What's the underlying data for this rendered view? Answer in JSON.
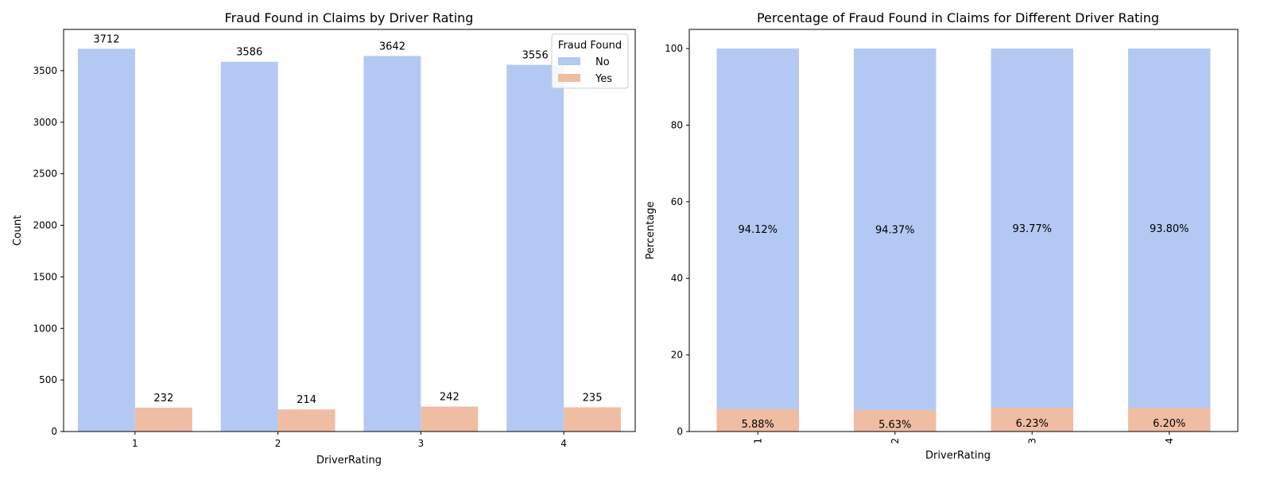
{
  "chart_data": [
    {
      "type": "bar",
      "title": "Fraud Found in Claims by Driver Rating",
      "xlabel": "DriverRating",
      "ylabel": "Count",
      "categories": [
        "1",
        "2",
        "3",
        "4"
      ],
      "ylim": [
        0,
        3900
      ],
      "yticks": [
        0,
        500,
        1000,
        1500,
        2000,
        2500,
        3000,
        3500
      ],
      "legend": {
        "title": "Fraud Found",
        "placement": "top-right"
      },
      "series": [
        {
          "name": "No",
          "color": "#b3c8f3",
          "values": [
            3712,
            3586,
            3642,
            3556
          ]
        },
        {
          "name": "Yes",
          "color": "#efbda3",
          "values": [
            232,
            214,
            242,
            235
          ]
        }
      ]
    },
    {
      "type": "bar",
      "stacked": true,
      "title": "Percentage of Fraud Found in Claims for Different Driver Rating",
      "xlabel": "DriverRating",
      "ylabel": "Percentage",
      "categories": [
        "1",
        "2",
        "3",
        "4"
      ],
      "ylim": [
        0,
        105
      ],
      "yticks": [
        0,
        20,
        40,
        60,
        80,
        100
      ],
      "series": [
        {
          "color": "#efbda3",
          "values": [
            5.88,
            5.63,
            6.23,
            6.2
          ],
          "labels": [
            "5.88%",
            "5.63%",
            "6.23%",
            "6.20%"
          ]
        },
        {
          "color": "#b3c8f3",
          "values": [
            94.12,
            94.37,
            93.77,
            93.8
          ],
          "labels": [
            "94.12%",
            "94.37%",
            "93.77%",
            "93.80%"
          ]
        }
      ]
    }
  ]
}
